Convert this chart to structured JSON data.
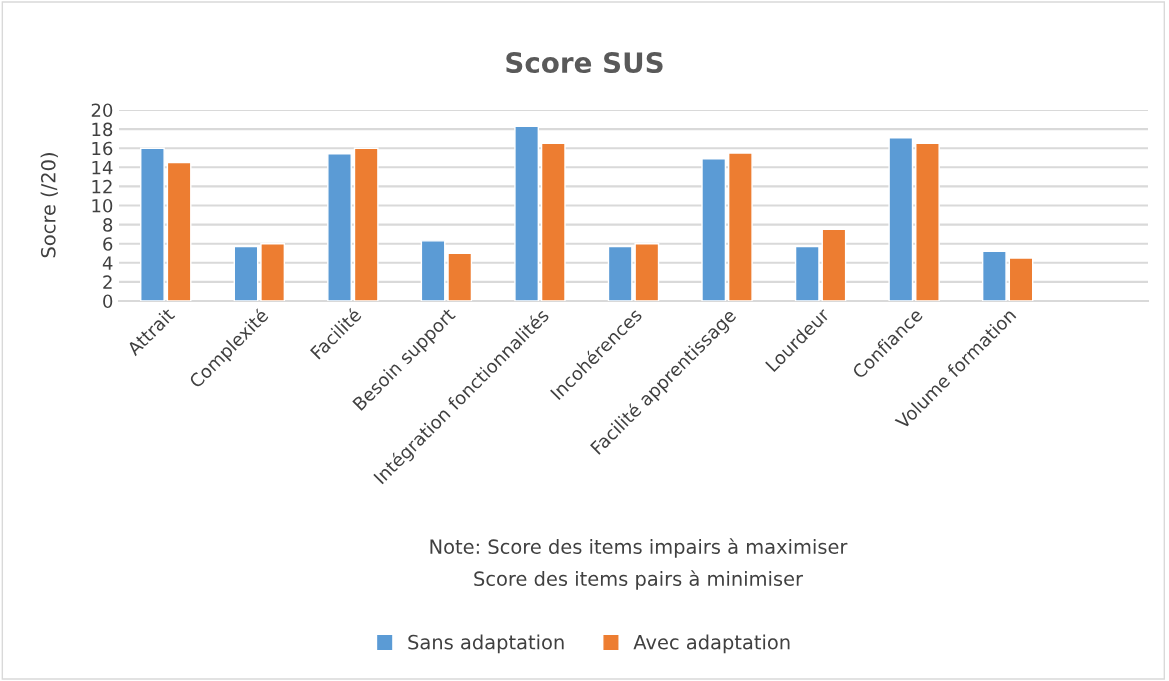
{
  "chart_data": {
    "type": "bar",
    "title": "Score SUS",
    "ylabel": "Socre (/20)",
    "categories": [
      "Attrait",
      "Complexité",
      "Facilité",
      "Besoin support",
      "Intégration fonctionnalités",
      "Incohérences",
      "Facilité apprentissage",
      "Lourdeur",
      "Confiance",
      "Volume formation",
      null
    ],
    "series": [
      {
        "name": "Sans adaptation",
        "color": "#5b9bd5",
        "values": [
          16,
          5.7,
          15.4,
          6.3,
          18.3,
          5.7,
          14.9,
          5.7,
          17.1,
          5.2,
          null
        ]
      },
      {
        "name": "Avec adaptation",
        "color": "#ed7d31",
        "values": [
          14.5,
          6,
          16,
          5,
          16.5,
          6,
          15.5,
          7.5,
          16.5,
          4.5,
          null
        ]
      }
    ],
    "ylim": [
      0,
      20
    ],
    "yticks": [
      0,
      2,
      4,
      6,
      8,
      10,
      12,
      14,
      16,
      18,
      20
    ],
    "grid": "y",
    "legend": "bottom",
    "annotations": [
      "Note: Score des items impairs à maximiser",
      "Score des items pairs à minimiser"
    ]
  }
}
